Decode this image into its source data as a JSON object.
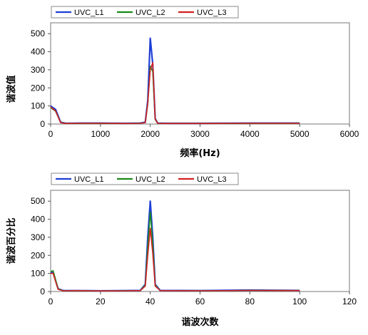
{
  "colors": {
    "UVC_L1": "#1f3fd6",
    "UVC_L2": "#1a8a1a",
    "UVC_L3": "#d42020"
  },
  "chart_data": [
    {
      "type": "line",
      "xlabel": "频率(Hz)",
      "ylabel": "谐波值",
      "xlim": [
        0,
        6000
      ],
      "ylim": [
        0,
        560
      ],
      "xticks": [
        0,
        1000,
        2000,
        3000,
        4000,
        5000,
        6000
      ],
      "yticks": [
        0,
        100,
        200,
        300,
        400,
        500
      ],
      "legend": {
        "position": "top-left",
        "entries": [
          "UVC_L1",
          "UVC_L2",
          "UVC_L3"
        ]
      },
      "series": [
        {
          "name": "UVC_L1",
          "color": "#1f3fd6",
          "x": [
            0,
            100,
            200,
            300,
            600,
            1000,
            1500,
            1800,
            1900,
            1950,
            2000,
            2050,
            2100,
            2150,
            2300,
            3000,
            4000,
            5000
          ],
          "y": [
            100,
            80,
            10,
            4,
            5,
            5,
            4,
            5,
            10,
            130,
            475,
            330,
            30,
            5,
            4,
            4,
            5,
            5
          ]
        },
        {
          "name": "UVC_L2",
          "color": "#1a8a1a",
          "x": [
            0,
            100,
            200,
            300,
            600,
            1000,
            1500,
            1800,
            1900,
            1950,
            2000,
            2050,
            2100,
            2150,
            2300,
            3000,
            4000,
            5000
          ],
          "y": [
            92,
            70,
            8,
            3,
            4,
            4,
            3,
            4,
            8,
            110,
            320,
            290,
            25,
            4,
            3,
            3,
            4,
            4
          ]
        },
        {
          "name": "UVC_L3",
          "color": "#d42020",
          "x": [
            0,
            100,
            200,
            300,
            600,
            1000,
            1500,
            1800,
            1900,
            1950,
            2000,
            2050,
            2100,
            2150,
            2300,
            3000,
            4000,
            5000
          ],
          "y": [
            95,
            72,
            8,
            3,
            4,
            4,
            3,
            4,
            8,
            115,
            300,
            340,
            28,
            4,
            3,
            3,
            4,
            4
          ]
        }
      ]
    },
    {
      "type": "line",
      "xlabel": "谐波次数",
      "ylabel": "谐波百分比",
      "xlim": [
        0,
        120
      ],
      "ylim": [
        0,
        560
      ],
      "xticks": [
        0,
        20,
        40,
        60,
        80,
        100,
        120
      ],
      "yticks": [
        0,
        100,
        200,
        300,
        400,
        500
      ],
      "legend": {
        "position": "top-left",
        "entries": [
          "UVC_L1",
          "UVC_L2",
          "UVC_L3"
        ]
      },
      "series": [
        {
          "name": "UVC_L1",
          "color": "#1f3fd6",
          "x": [
            0,
            1,
            2,
            3,
            5,
            10,
            20,
            30,
            36,
            38,
            39,
            40,
            41,
            42,
            44,
            60,
            80,
            100
          ],
          "y": [
            105,
            105,
            60,
            15,
            5,
            5,
            4,
            5,
            6,
            40,
            300,
            500,
            300,
            40,
            6,
            5,
            8,
            6
          ]
        },
        {
          "name": "UVC_L2",
          "color": "#1a8a1a",
          "x": [
            0,
            1,
            2,
            3,
            5,
            10,
            20,
            30,
            36,
            38,
            39,
            40,
            41,
            42,
            44,
            60,
            80,
            100
          ],
          "y": [
            110,
            115,
            65,
            15,
            4,
            4,
            3,
            4,
            5,
            35,
            250,
            440,
            260,
            35,
            5,
            4,
            6,
            5
          ]
        },
        {
          "name": "UVC_L3",
          "color": "#d42020",
          "x": [
            0,
            1,
            2,
            3,
            5,
            10,
            20,
            30,
            36,
            38,
            39,
            40,
            41,
            42,
            44,
            60,
            80,
            100
          ],
          "y": [
            100,
            100,
            55,
            12,
            4,
            5,
            3,
            4,
            5,
            30,
            200,
            350,
            210,
            30,
            5,
            4,
            6,
            5
          ]
        }
      ]
    }
  ]
}
